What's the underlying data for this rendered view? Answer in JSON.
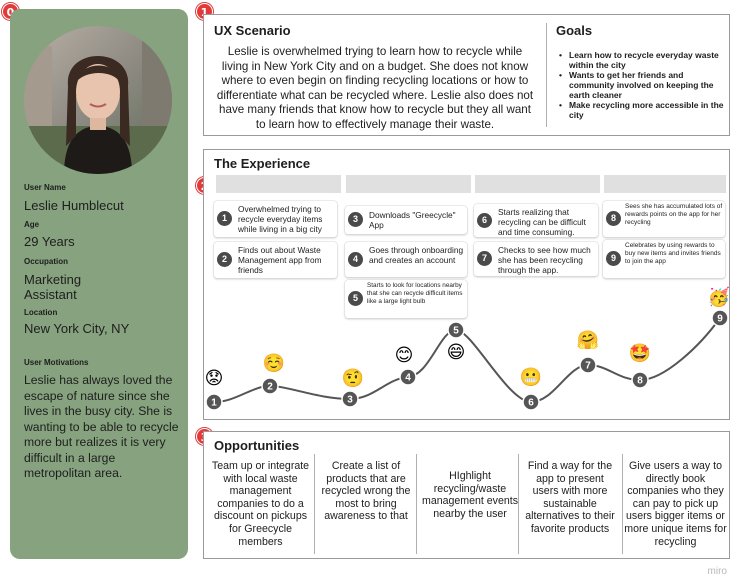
{
  "badges": [
    "0",
    "1",
    "2",
    "3"
  ],
  "persona": {
    "name_label": "User Name",
    "name": "Leslie Humblecut",
    "age_label": "Age",
    "age": "29 Years",
    "occupation_label": "Occupation",
    "occupation_line1": "Marketing",
    "occupation_line2": "Assistant",
    "location_label": "Location",
    "location": "New York City, NY",
    "motivations_label": "User Motivations",
    "motivations": "Leslie has always loved the escape of nature since she lives in the busy city. She is wanting to be able to recycle more but realizes it is very difficult in a large metropolitan area."
  },
  "scenario": {
    "title": "UX Scenario",
    "text": "Leslie is overwhelmed trying to learn how to recycle while living in New York City and on a budget. She does not know where to even begin on finding recycling locations or how to differentiate what can be recycled where. Leslie also does not have many friends that know how to recycle but they all want to learn how to effectively manage their waste."
  },
  "goals": {
    "title": "Goals",
    "items": [
      "Learn how to recycle everyday waste within the city",
      "Wants to get her friends and community involved on keeping the earth cleaner",
      "Make recycling more accessible in the city"
    ]
  },
  "experience": {
    "title": "The Experience",
    "steps": [
      {
        "num": "1",
        "text": "Overwhelmed trying to recycle everyday items while living in a big city"
      },
      {
        "num": "2",
        "text": "Finds out about Waste Management app from friends"
      },
      {
        "num": "3",
        "text": "Downloads \"Greecycle\" App"
      },
      {
        "num": "4",
        "text": "Goes through onboarding and creates an account"
      },
      {
        "num": "5",
        "text": "Starts to look for locations nearby that she can recycle difficult items like a large light bulb"
      },
      {
        "num": "6",
        "text": "Starts realizing that recycling can be difficult and time consuming."
      },
      {
        "num": "7",
        "text": "Checks to see how much she has been recycling through the app."
      },
      {
        "num": "8",
        "text": "Sees she has accumulated lots of rewards points on the app for her recycling"
      },
      {
        "num": "9",
        "text": "Celebrates by using rewards to buy new items and invites friends to join the app"
      }
    ],
    "journey": [
      {
        "num": "1",
        "emoji": "😟"
      },
      {
        "num": "2",
        "emoji": "☺️"
      },
      {
        "num": "3",
        "emoji": "🤨"
      },
      {
        "num": "4",
        "emoji": "😊"
      },
      {
        "num": "5",
        "emoji": "😄"
      },
      {
        "num": "6",
        "emoji": "😬"
      },
      {
        "num": "7",
        "emoji": "🤗"
      },
      {
        "num": "8",
        "emoji": "🤩"
      },
      {
        "num": "9",
        "emoji": "🥳"
      }
    ],
    "colors": {
      "curve": "#555555",
      "node": "#555555",
      "stage": "#e0e0e0"
    }
  },
  "opportunities": {
    "title": "Opportunities",
    "items": [
      "Team up or integrate with local waste management companies to do a discount on pickups for Greecycle members",
      "Create a list of products that are recycled wrong the most to bring awareness to that",
      "HIghlight recycling/waste management events nearby the user",
      "Find a way  for the app to  present users with more sustainable alternatives to their favorite products",
      "Give users a way to directly book companies who they can pay to pick up users bigger items or more unique items for recycling"
    ]
  },
  "watermark": "miro",
  "colors": {
    "persona_bg": "#86a27e",
    "badge": "#e23a3a"
  }
}
